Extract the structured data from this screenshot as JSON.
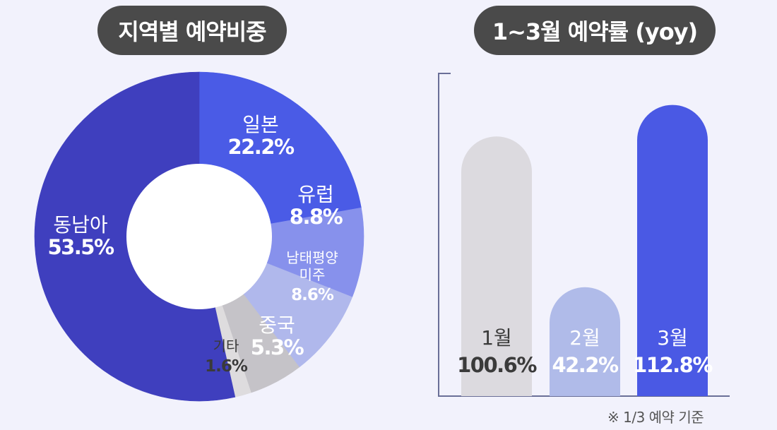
{
  "colors": {
    "background": "#f2f2fc",
    "pill": "#4a4a4a",
    "southeast_asia": "#3f3fbe",
    "japan": "#4a5be6",
    "europe": "#8791ec",
    "south_pacific_americas": "#b0b8ec",
    "china": "#c5c3c8",
    "other": "#dedcde",
    "jan": "#dcdadf",
    "feb": "#b0bbe9",
    "mar": "#4a59e4",
    "axis": "#6a6f98"
  },
  "chart_data": [
    {
      "type": "pie",
      "title": "지역별 예약비중",
      "slices": [
        {
          "label": "일본",
          "value": 22.2,
          "value_label": "22.2%",
          "color": "#4a5be6"
        },
        {
          "label": "유럽",
          "value": 8.8,
          "value_label": "8.8%",
          "color": "#8791ec"
        },
        {
          "label": "남태평양 미주",
          "label_lines": [
            "남태평양",
            "미주"
          ],
          "value": 8.6,
          "value_label": "8.6%",
          "color": "#b0b8ec"
        },
        {
          "label": "중국",
          "value": 5.3,
          "value_label": "5.3%",
          "color": "#c5c3c8"
        },
        {
          "label": "기타",
          "value": 1.6,
          "value_label": "1.6%",
          "color": "#dedcde"
        },
        {
          "label": "동남아",
          "value": 53.5,
          "value_label": "53.5%",
          "color": "#3f3fbe"
        }
      ]
    },
    {
      "type": "bar",
      "title": "1~3월 예약률 (yoy)",
      "categories": [
        "1월",
        "2월",
        "3월"
      ],
      "values": [
        100.6,
        42.2,
        112.8
      ],
      "value_labels": [
        "100.6%",
        "42.2%",
        "112.8%"
      ],
      "colors": [
        "#dcdadf",
        "#b0bbe9",
        "#4a59e4"
      ],
      "ylim": [
        0,
        125
      ],
      "note": "※ 1/3 예약 기준"
    }
  ]
}
